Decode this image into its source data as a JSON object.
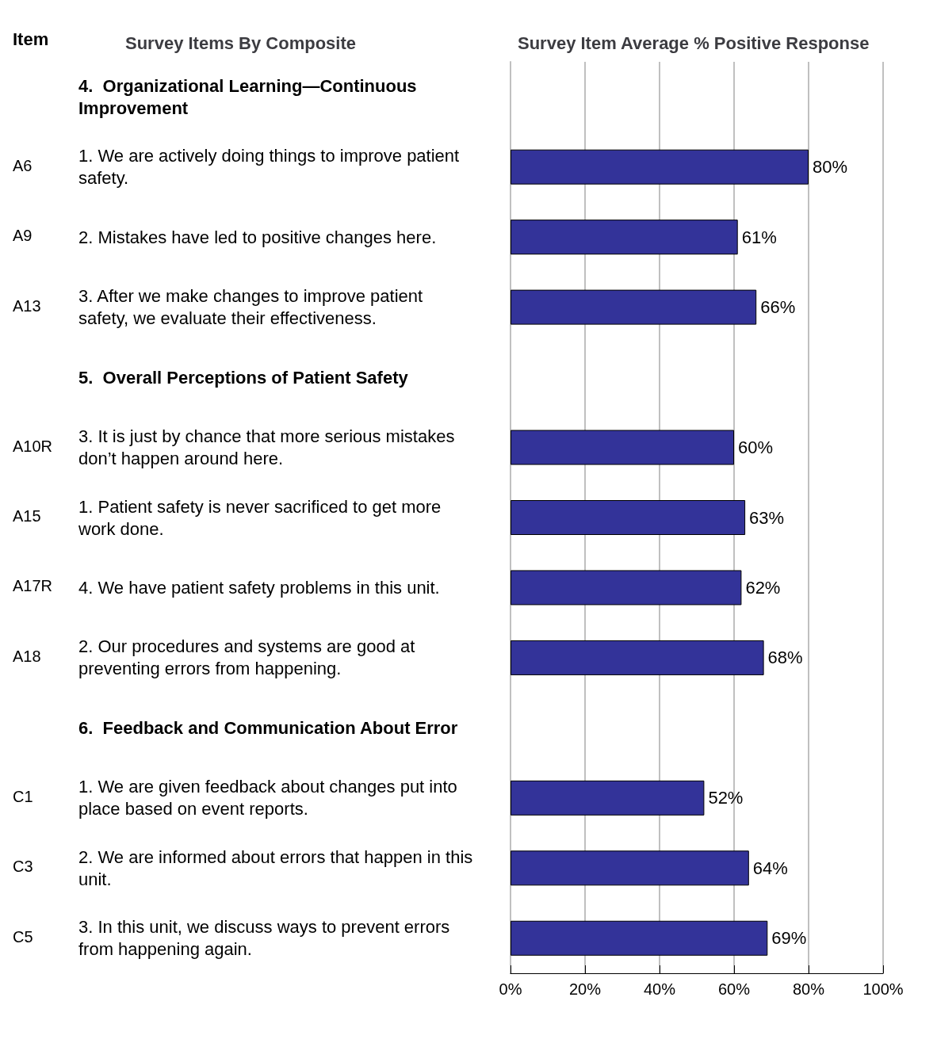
{
  "chart_data": {
    "type": "bar",
    "orientation": "horizontal",
    "title": "Survey Item Average % Positive Response",
    "ylabel": "Survey Items By Composite",
    "categories": [
      "4.  Organizational Learning—Continuous Improvement",
      "1. We are actively doing things to improve patient safety.",
      "2. Mistakes have led to positive changes here.",
      "3. After we make changes to improve patient safety, we evaluate their effectiveness.",
      "5.  Overall Perceptions of Patient Safety",
      "3. It is just by chance that more serious mistakes don’t happen around here.",
      "1. Patient safety is never sacrificed to get more work done.",
      "4. We have patient safety problems in this unit.",
      "2. Our procedures and systems are good at preventing errors from happening.",
      "6.  Feedback and Communication About Error",
      "1. We are given feedback about changes put into place based on event reports.",
      "2. We are informed about errors that happen in this unit.",
      "3. In this unit, we discuss ways to prevent errors from happening again."
    ],
    "values": [
      null,
      80,
      61,
      66,
      null,
      60,
      63,
      62,
      68,
      null,
      52,
      64,
      69
    ],
    "value_labels": [
      null,
      "80%",
      "61%",
      "66%",
      null,
      "60%",
      "63%",
      "62%",
      "68%",
      null,
      "52%",
      "64%",
      "69%"
    ],
    "color": "#333399",
    "xlim": [
      0,
      100
    ],
    "xticks": [
      {
        "value": 0,
        "label": "0%"
      },
      {
        "value": 20,
        "label": "20%"
      },
      {
        "value": 40,
        "label": "40%"
      },
      {
        "value": 60,
        "label": "60%"
      },
      {
        "value": 80,
        "label": "80%"
      },
      {
        "value": 100,
        "label": "100%"
      }
    ],
    "grid": "x",
    "annotations": [
      "Item",
      "A6",
      "A9",
      "A13",
      "A10R",
      "A15",
      "A17R",
      "A18",
      "C1",
      "C3",
      "C5"
    ]
  }
}
